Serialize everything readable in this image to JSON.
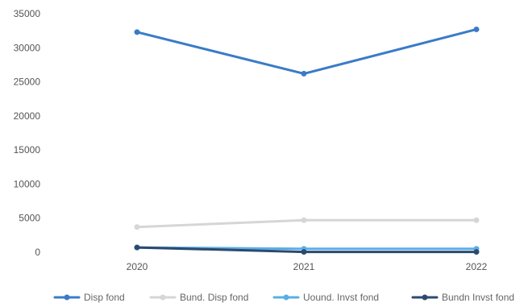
{
  "chart_data": {
    "type": "line",
    "x": [
      "2020",
      "2021",
      "2022"
    ],
    "yticks": [
      0,
      5000,
      10000,
      15000,
      20000,
      25000,
      30000,
      35000
    ],
    "ylim": [
      0,
      35000
    ],
    "grid": false,
    "legend_position": "bottom",
    "series": [
      {
        "name": "Disp fond",
        "values": [
          32300,
          26200,
          32700
        ],
        "color": "#3a7bc8"
      },
      {
        "name": "Bund. Disp fond",
        "values": [
          3700,
          4700,
          4700
        ],
        "color": "#d6d6d6"
      },
      {
        "name": "Uound. Invst fond",
        "values": [
          700,
          500,
          500
        ],
        "color": "#5aaee6"
      },
      {
        "name": "Bundn Invst fond",
        "values": [
          700,
          50,
          50
        ],
        "color": "#2c4a6e"
      }
    ]
  }
}
